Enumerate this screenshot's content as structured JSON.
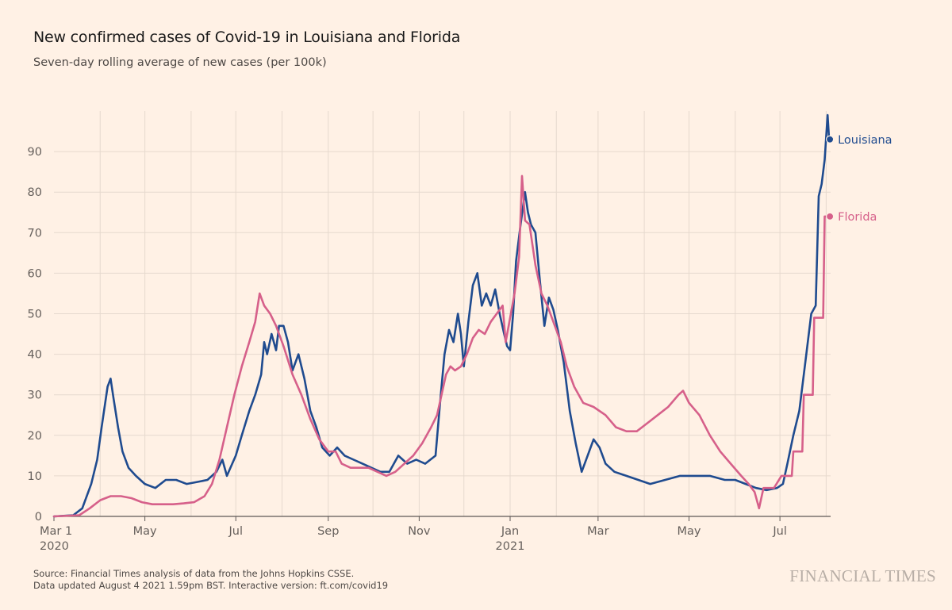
{
  "header": {
    "title": "New confirmed cases of Covid-19 in Louisiana and Florida",
    "subtitle": "Seven-day rolling average of new cases (per 100k)"
  },
  "footer": {
    "source": "Source: Financial Times analysis of data from the Johns Hopkins CSSE.",
    "updated": "Data updated August 4 2021 1.59pm BST. Interactive version: ft.com/covid19",
    "brand": "FINANCIAL TIMES"
  },
  "chart_data": {
    "type": "line",
    "title": "New confirmed cases of Covid-19 in Louisiana and Florida",
    "subtitle": "Seven-day rolling average of new cases (per 100k)",
    "xlabel": "",
    "ylabel": "",
    "x_range": [
      "2020-03-01",
      "2021-08-04"
    ],
    "ylim": [
      0,
      100
    ],
    "y_ticks": [
      0,
      10,
      20,
      30,
      40,
      50,
      60,
      70,
      80,
      90
    ],
    "x_ticks": [
      {
        "date": "2020-03-01",
        "label": "Mar 1",
        "sublabel": "2020"
      },
      {
        "date": "2020-05-01",
        "label": "May",
        "sublabel": ""
      },
      {
        "date": "2020-07-01",
        "label": "Jul",
        "sublabel": ""
      },
      {
        "date": "2020-09-01",
        "label": "Sep",
        "sublabel": ""
      },
      {
        "date": "2020-11-01",
        "label": "Nov",
        "sublabel": ""
      },
      {
        "date": "2021-01-01",
        "label": "Jan",
        "sublabel": "2021"
      },
      {
        "date": "2021-03-01",
        "label": "Mar",
        "sublabel": ""
      },
      {
        "date": "2021-05-01",
        "label": "May",
        "sublabel": ""
      },
      {
        "date": "2021-07-01",
        "label": "Jul",
        "sublabel": ""
      }
    ],
    "grid": true,
    "legend": "end-of-line labels",
    "series": [
      {
        "name": "Louisiana",
        "color": "#1f4b8f",
        "end_label": "Louisiana",
        "points": [
          [
            "2020-03-01",
            0
          ],
          [
            "2020-03-14",
            0.3
          ],
          [
            "2020-03-20",
            2
          ],
          [
            "2020-03-26",
            8
          ],
          [
            "2020-03-30",
            14
          ],
          [
            "2020-04-02",
            22
          ],
          [
            "2020-04-06",
            32
          ],
          [
            "2020-04-08",
            34
          ],
          [
            "2020-04-10",
            29
          ],
          [
            "2020-04-13",
            22
          ],
          [
            "2020-04-16",
            16
          ],
          [
            "2020-04-20",
            12
          ],
          [
            "2020-04-25",
            10
          ],
          [
            "2020-05-01",
            8
          ],
          [
            "2020-05-08",
            7
          ],
          [
            "2020-05-15",
            9
          ],
          [
            "2020-05-22",
            9
          ],
          [
            "2020-05-29",
            8
          ],
          [
            "2020-06-05",
            8.5
          ],
          [
            "2020-06-12",
            9
          ],
          [
            "2020-06-18",
            11
          ],
          [
            "2020-06-22",
            14
          ],
          [
            "2020-06-25",
            10
          ],
          [
            "2020-07-01",
            15
          ],
          [
            "2020-07-05",
            20
          ],
          [
            "2020-07-10",
            26
          ],
          [
            "2020-07-14",
            30
          ],
          [
            "2020-07-18",
            35
          ],
          [
            "2020-07-20",
            43
          ],
          [
            "2020-07-22",
            40
          ],
          [
            "2020-07-25",
            45
          ],
          [
            "2020-07-28",
            41
          ],
          [
            "2020-07-30",
            47
          ],
          [
            "2020-08-02",
            47
          ],
          [
            "2020-08-05",
            43
          ],
          [
            "2020-08-08",
            36
          ],
          [
            "2020-08-12",
            40
          ],
          [
            "2020-08-16",
            34
          ],
          [
            "2020-08-20",
            26
          ],
          [
            "2020-08-24",
            22
          ],
          [
            "2020-08-28",
            17
          ],
          [
            "2020-09-02",
            15
          ],
          [
            "2020-09-07",
            17
          ],
          [
            "2020-09-12",
            15
          ],
          [
            "2020-09-18",
            14
          ],
          [
            "2020-09-24",
            13
          ],
          [
            "2020-09-30",
            12
          ],
          [
            "2020-10-06",
            11
          ],
          [
            "2020-10-12",
            11
          ],
          [
            "2020-10-18",
            15
          ],
          [
            "2020-10-24",
            13
          ],
          [
            "2020-10-30",
            14
          ],
          [
            "2020-11-05",
            13
          ],
          [
            "2020-11-12",
            15
          ],
          [
            "2020-11-15",
            28
          ],
          [
            "2020-11-18",
            40
          ],
          [
            "2020-11-21",
            46
          ],
          [
            "2020-11-24",
            43
          ],
          [
            "2020-11-27",
            50
          ],
          [
            "2020-11-29",
            45
          ],
          [
            "2020-12-01",
            37
          ],
          [
            "2020-12-04",
            48
          ],
          [
            "2020-12-07",
            57
          ],
          [
            "2020-12-10",
            60
          ],
          [
            "2020-12-13",
            52
          ],
          [
            "2020-12-16",
            55
          ],
          [
            "2020-12-19",
            52
          ],
          [
            "2020-12-22",
            56
          ],
          [
            "2020-12-25",
            50
          ],
          [
            "2020-12-28",
            45
          ],
          [
            "2020-12-30",
            42
          ],
          [
            "2021-01-01",
            41
          ],
          [
            "2021-01-03",
            50
          ],
          [
            "2021-01-05",
            63
          ],
          [
            "2021-01-08",
            72
          ],
          [
            "2021-01-11",
            80
          ],
          [
            "2021-01-13",
            75
          ],
          [
            "2021-01-15",
            72
          ],
          [
            "2021-01-18",
            70
          ],
          [
            "2021-01-21",
            58
          ],
          [
            "2021-01-24",
            47
          ],
          [
            "2021-01-27",
            54
          ],
          [
            "2021-01-30",
            51
          ],
          [
            "2021-02-02",
            46
          ],
          [
            "2021-02-06",
            38
          ],
          [
            "2021-02-10",
            26
          ],
          [
            "2021-02-14",
            18
          ],
          [
            "2021-02-18",
            11
          ],
          [
            "2021-02-22",
            15
          ],
          [
            "2021-02-26",
            19
          ],
          [
            "2021-03-02",
            17
          ],
          [
            "2021-03-06",
            13
          ],
          [
            "2021-03-12",
            11
          ],
          [
            "2021-03-20",
            10
          ],
          [
            "2021-03-28",
            9
          ],
          [
            "2021-04-05",
            8
          ],
          [
            "2021-04-15",
            9
          ],
          [
            "2021-04-25",
            10
          ],
          [
            "2021-05-05",
            10
          ],
          [
            "2021-05-15",
            10
          ],
          [
            "2021-05-25",
            9
          ],
          [
            "2021-06-01",
            9
          ],
          [
            "2021-06-08",
            8
          ],
          [
            "2021-06-15",
            7
          ],
          [
            "2021-06-22",
            6.5
          ],
          [
            "2021-06-29",
            7
          ],
          [
            "2021-07-03",
            8
          ],
          [
            "2021-07-06",
            13
          ],
          [
            "2021-07-10",
            20
          ],
          [
            "2021-07-14",
            26
          ],
          [
            "2021-07-18",
            38
          ],
          [
            "2021-07-22",
            50
          ],
          [
            "2021-07-25",
            52
          ],
          [
            "2021-07-27",
            79
          ],
          [
            "2021-07-29",
            82
          ],
          [
            "2021-07-31",
            88
          ],
          [
            "2021-08-02",
            99
          ],
          [
            "2021-08-03",
            93
          ]
        ]
      },
      {
        "name": "Florida",
        "color": "#d6608a",
        "end_label": "Florida",
        "points": [
          [
            "2020-03-01",
            0
          ],
          [
            "2020-03-18",
            0.3
          ],
          [
            "2020-03-25",
            2
          ],
          [
            "2020-04-01",
            4
          ],
          [
            "2020-04-08",
            5
          ],
          [
            "2020-04-15",
            5
          ],
          [
            "2020-04-22",
            4.5
          ],
          [
            "2020-04-29",
            3.5
          ],
          [
            "2020-05-06",
            3
          ],
          [
            "2020-05-13",
            3
          ],
          [
            "2020-05-20",
            3
          ],
          [
            "2020-05-27",
            3.2
          ],
          [
            "2020-06-03",
            3.5
          ],
          [
            "2020-06-10",
            5
          ],
          [
            "2020-06-15",
            8
          ],
          [
            "2020-06-20",
            14
          ],
          [
            "2020-06-25",
            22
          ],
          [
            "2020-06-30",
            30
          ],
          [
            "2020-07-05",
            37
          ],
          [
            "2020-07-10",
            43
          ],
          [
            "2020-07-14",
            48
          ],
          [
            "2020-07-17",
            55
          ],
          [
            "2020-07-20",
            52
          ],
          [
            "2020-07-24",
            50
          ],
          [
            "2020-07-28",
            47
          ],
          [
            "2020-08-02",
            42
          ],
          [
            "2020-08-08",
            35
          ],
          [
            "2020-08-14",
            30
          ],
          [
            "2020-08-20",
            24
          ],
          [
            "2020-08-26",
            19
          ],
          [
            "2020-09-01",
            16
          ],
          [
            "2020-09-06",
            16
          ],
          [
            "2020-09-10",
            13
          ],
          [
            "2020-09-16",
            12
          ],
          [
            "2020-09-22",
            12
          ],
          [
            "2020-09-28",
            12
          ],
          [
            "2020-10-04",
            11
          ],
          [
            "2020-10-10",
            10
          ],
          [
            "2020-10-16",
            11
          ],
          [
            "2020-10-22",
            13
          ],
          [
            "2020-10-28",
            15
          ],
          [
            "2020-11-03",
            18
          ],
          [
            "2020-11-09",
            22
          ],
          [
            "2020-11-13",
            25
          ],
          [
            "2020-11-16",
            30
          ],
          [
            "2020-11-19",
            35
          ],
          [
            "2020-11-22",
            37
          ],
          [
            "2020-11-25",
            36
          ],
          [
            "2020-11-29",
            37
          ],
          [
            "2020-12-03",
            40
          ],
          [
            "2020-12-07",
            44
          ],
          [
            "2020-12-11",
            46
          ],
          [
            "2020-12-15",
            45
          ],
          [
            "2020-12-19",
            48
          ],
          [
            "2020-12-23",
            50
          ],
          [
            "2020-12-27",
            52
          ],
          [
            "2020-12-29",
            43
          ],
          [
            "2021-01-01",
            49
          ],
          [
            "2021-01-04",
            55
          ],
          [
            "2021-01-07",
            64
          ],
          [
            "2021-01-09",
            84
          ],
          [
            "2021-01-11",
            73
          ],
          [
            "2021-01-14",
            72
          ],
          [
            "2021-01-18",
            62
          ],
          [
            "2021-01-22",
            55
          ],
          [
            "2021-01-26",
            52
          ],
          [
            "2021-01-30",
            48
          ],
          [
            "2021-02-04",
            43
          ],
          [
            "2021-02-08",
            37
          ],
          [
            "2021-02-13",
            32
          ],
          [
            "2021-02-19",
            28
          ],
          [
            "2021-02-26",
            27
          ],
          [
            "2021-03-06",
            25
          ],
          [
            "2021-03-13",
            22
          ],
          [
            "2021-03-20",
            21
          ],
          [
            "2021-03-27",
            21
          ],
          [
            "2021-04-03",
            23
          ],
          [
            "2021-04-10",
            25
          ],
          [
            "2021-04-17",
            27
          ],
          [
            "2021-04-24",
            30
          ],
          [
            "2021-04-27",
            31
          ],
          [
            "2021-05-01",
            28
          ],
          [
            "2021-05-08",
            25
          ],
          [
            "2021-05-15",
            20
          ],
          [
            "2021-05-22",
            16
          ],
          [
            "2021-05-29",
            13
          ],
          [
            "2021-06-05",
            10
          ],
          [
            "2021-06-10",
            8
          ],
          [
            "2021-06-14",
            6
          ],
          [
            "2021-06-17",
            2
          ],
          [
            "2021-06-20",
            7
          ],
          [
            "2021-06-27",
            7
          ],
          [
            "2021-07-02",
            10
          ],
          [
            "2021-07-09",
            10
          ],
          [
            "2021-07-10",
            16
          ],
          [
            "2021-07-16",
            16
          ],
          [
            "2021-07-17",
            30
          ],
          [
            "2021-07-23",
            30
          ],
          [
            "2021-07-24",
            49
          ],
          [
            "2021-07-30",
            49
          ],
          [
            "2021-07-31",
            74
          ],
          [
            "2021-08-03",
            74
          ]
        ]
      }
    ]
  }
}
